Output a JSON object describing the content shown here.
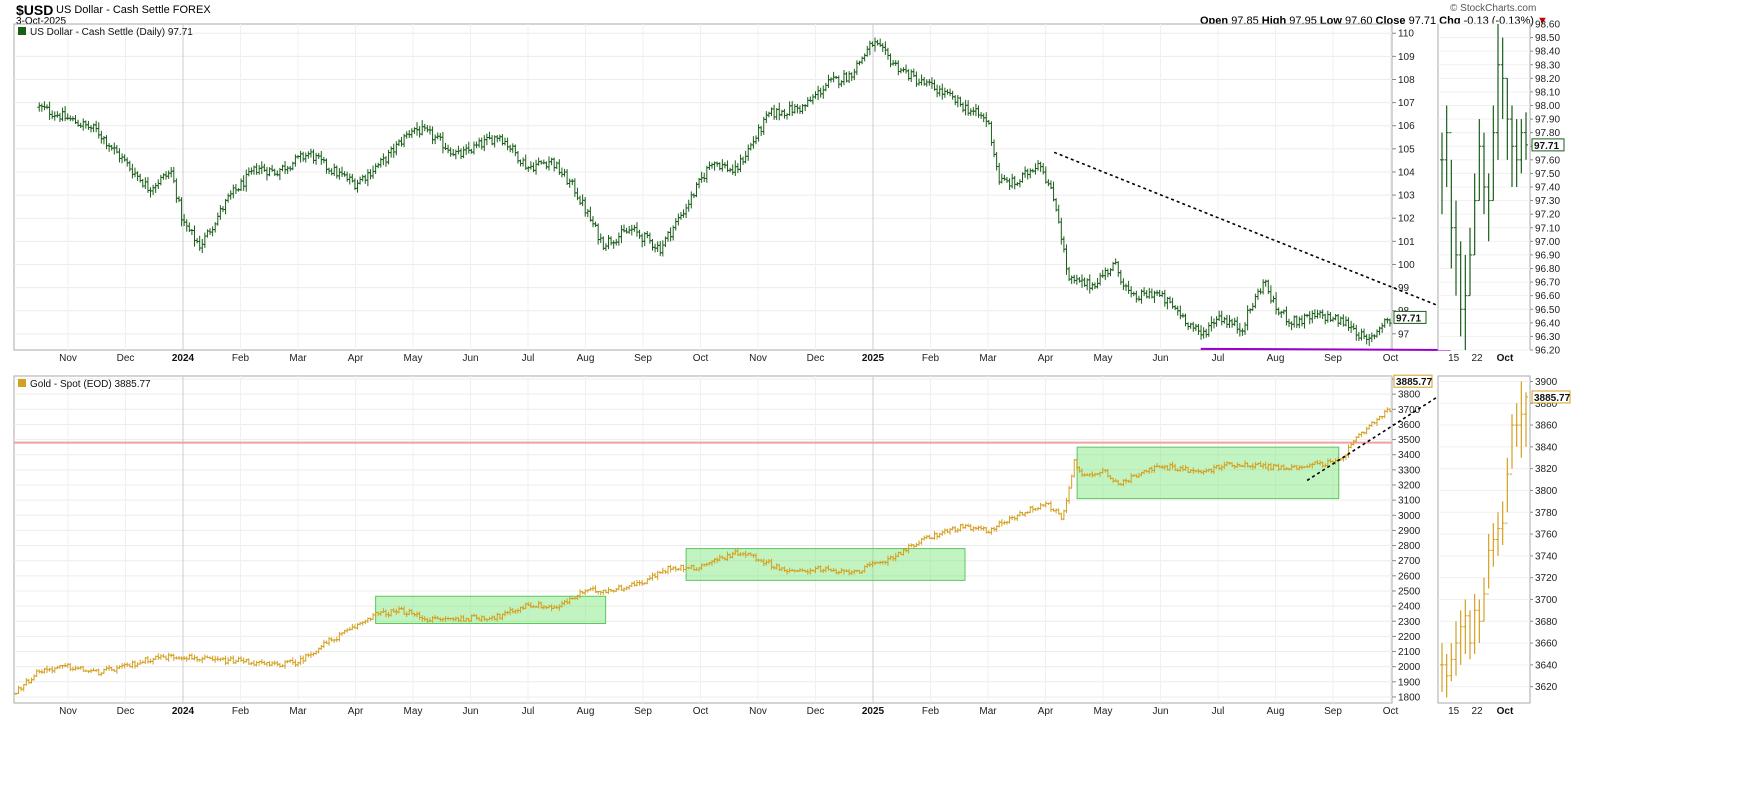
{
  "header": {
    "symbol": "$USD",
    "name": "US Dollar - Cash Settle FOREX",
    "date": "3-Oct-2025",
    "watermark": "© StockCharts.com",
    "open_label": "Open",
    "open": "97.85",
    "high_label": "High",
    "high": "97.95",
    "low_label": "Low",
    "low": "97.60",
    "close_label": "Close",
    "close": "97.71",
    "chg_label": "Chg",
    "chg": "-0.13 (-0.13%)",
    "chg_direction_color": "#cc0000"
  },
  "chart_data": [
    {
      "type": "bar",
      "panel": "top-main",
      "label": "US Dollar - Cash Settle (Daily) 97.71",
      "series_color": "#1a5e1a",
      "last_value_label": "97.71",
      "ylim": [
        96.3,
        110.4
      ],
      "yticks": [
        97,
        98,
        99,
        100,
        101,
        102,
        103,
        104,
        105,
        106,
        107,
        108,
        109,
        110
      ],
      "ytick_labels": [
        "97",
        "98",
        "99",
        "100",
        "101",
        "102",
        "103",
        "104",
        "105",
        "106",
        "107",
        "108",
        "109",
        "110"
      ],
      "x_tick_labels": [
        "Nov",
        "Dec",
        "2024",
        "Feb",
        "Mar",
        "Apr",
        "May",
        "Jun",
        "Jul",
        "Aug",
        "Sep",
        "Oct",
        "Nov",
        "Dec",
        "2025",
        "Feb",
        "Mar",
        "Apr",
        "May",
        "Jun",
        "Jul",
        "Aug",
        "Sep",
        "Oct"
      ],
      "x_tick_bold": [
        "2024",
        "2025"
      ],
      "x_tick_index": [
        0,
        1,
        2,
        3,
        4,
        5,
        6,
        7,
        8,
        9,
        10,
        11,
        12,
        13,
        14,
        15,
        16,
        17,
        18,
        19,
        20,
        21,
        22,
        23
      ],
      "anchors_months": [
        -0.5,
        0,
        0.5,
        1,
        1.4,
        1.8,
        2,
        2.3,
        2.8,
        3.3,
        3.6,
        4.2,
        4.5,
        5.0,
        5.5,
        6.0,
        6.3,
        6.8,
        7.5,
        8.0,
        8.4,
        8.8,
        9.3,
        9.8,
        10.3,
        10.8,
        11.2,
        11.6,
        12.2,
        12.8,
        13.2,
        13.6,
        14.0,
        14.4,
        14.8,
        15.1,
        15.6,
        16.0,
        16.2,
        16.5,
        16.9,
        17.2,
        17.4,
        17.8,
        18.2,
        18.5,
        18.9,
        19.3,
        19.7,
        20.0,
        20.4,
        20.8,
        21.0,
        21.3,
        21.8,
        22.3,
        22.6,
        22.9,
        23.1,
        23.4
      ],
      "anchors_values": [
        106.8,
        106.3,
        105.8,
        104.4,
        103.3,
        104.0,
        101.8,
        100.8,
        102.9,
        104.2,
        104.0,
        104.8,
        104.2,
        103.5,
        104.5,
        105.9,
        105.6,
        104.7,
        105.6,
        104.2,
        104.5,
        103.3,
        100.9,
        101.5,
        100.7,
        102.7,
        104.5,
        104.0,
        106.5,
        106.8,
        107.8,
        108.2,
        109.6,
        108.6,
        107.9,
        107.6,
        106.8,
        106.2,
        103.6,
        103.5,
        104.5,
        102.4,
        99.3,
        99.1,
        100.0,
        98.5,
        98.8,
        98.0,
        96.9,
        97.8,
        97.2,
        99.3,
        98.1,
        97.5,
        97.8,
        97.4,
        96.6,
        97.6,
        97.4,
        97.7
      ],
      "trendline": {
        "from": [
          17.15,
          104.85
        ],
        "to": [
          24.05,
          98.0
        ],
        "style": "dotted",
        "color": "#000000"
      },
      "support_line": {
        "from": [
          19.7,
          96.35
        ],
        "to": [
          24.05,
          96.3
        ],
        "color": "#9900cc"
      }
    },
    {
      "type": "bar",
      "panel": "top-right-inset",
      "series_color": "#1a5e1a",
      "last_value_label": "97.71",
      "ylim": [
        96.2,
        98.6
      ],
      "yticks": [
        96.2,
        96.3,
        96.4,
        96.5,
        96.6,
        96.7,
        96.8,
        96.9,
        97.0,
        97.1,
        97.2,
        97.3,
        97.4,
        97.5,
        97.6,
        97.7,
        97.8,
        97.9,
        98.0,
        98.1,
        98.2,
        98.3,
        98.4,
        98.5,
        98.6
      ],
      "ytick_labels": [
        "96.20",
        "96.30",
        "96.40",
        "96.50",
        "96.60",
        "96.70",
        "96.80",
        "96.90",
        "97.00",
        "97.10",
        "97.20",
        "97.30",
        "97.40",
        "97.50",
        "97.60",
        "97.70",
        "97.80",
        "97.90",
        "98.00",
        "98.10",
        "98.20",
        "98.30",
        "98.40",
        "98.50",
        "98.60"
      ],
      "x_tick_labels": [
        "15",
        "22",
        "Oct"
      ],
      "x_tick_bold": [
        "Oct"
      ],
      "bars": [
        {
          "h": 97.8,
          "l": 97.2,
          "c": 97.6
        },
        {
          "h": 98.0,
          "l": 97.4,
          "c": 97.8
        },
        {
          "h": 97.6,
          "l": 96.8,
          "c": 97.1
        },
        {
          "h": 97.3,
          "l": 96.6,
          "c": 96.9
        },
        {
          "h": 97.0,
          "l": 96.3,
          "c": 96.5
        },
        {
          "h": 96.9,
          "l": 96.2,
          "c": 96.6
        },
        {
          "h": 97.1,
          "l": 96.6,
          "c": 96.9
        },
        {
          "h": 97.5,
          "l": 96.9,
          "c": 97.3
        },
        {
          "h": 97.9,
          "l": 97.3,
          "c": 97.7
        },
        {
          "h": 97.8,
          "l": 97.2,
          "c": 97.4
        },
        {
          "h": 97.5,
          "l": 97.0,
          "c": 97.3
        },
        {
          "h": 98.0,
          "l": 97.3,
          "c": 97.8
        },
        {
          "h": 98.6,
          "l": 97.6,
          "c": 98.3
        },
        {
          "h": 98.5,
          "l": 97.9,
          "c": 98.2
        },
        {
          "h": 98.2,
          "l": 97.6,
          "c": 97.9
        },
        {
          "h": 98.0,
          "l": 97.4,
          "c": 97.7
        },
        {
          "h": 97.9,
          "l": 97.4,
          "c": 97.6
        },
        {
          "h": 97.9,
          "l": 97.5,
          "c": 97.8
        },
        {
          "h": 97.95,
          "l": 97.6,
          "c": 97.71
        }
      ]
    },
    {
      "type": "bar",
      "panel": "bottom-main",
      "label": "Gold - Spot (EOD) 3885.77",
      "series_color": "#d4a020",
      "last_value_label": "3885.77",
      "ylim": [
        1760,
        3920
      ],
      "yticks": [
        1800,
        1900,
        2000,
        2100,
        2200,
        2300,
        2400,
        2500,
        2600,
        2700,
        2800,
        2900,
        3000,
        3100,
        3200,
        3300,
        3400,
        3500,
        3600,
        3700,
        3800,
        3900
      ],
      "ytick_labels": [
        "1800",
        "1900",
        "2000",
        "2100",
        "2200",
        "2300",
        "2400",
        "2500",
        "2600",
        "2700",
        "2800",
        "2900",
        "3000",
        "3100",
        "3200",
        "3300",
        "3400",
        "3500",
        "3600",
        "3700",
        "3800",
        "3900"
      ],
      "x_tick_labels": [
        "Nov",
        "Dec",
        "2024",
        "Feb",
        "Mar",
        "Apr",
        "May",
        "Jun",
        "Jul",
        "Aug",
        "Sep",
        "Oct",
        "Nov",
        "Dec",
        "2025",
        "Feb",
        "Mar",
        "Apr",
        "May",
        "Jun",
        "Jul",
        "Aug",
        "Sep",
        "Oct"
      ],
      "x_tick_bold": [
        "2024",
        "2025"
      ],
      "anchors_months": [
        -0.95,
        -0.5,
        0,
        0.5,
        1.0,
        1.5,
        2.0,
        2.5,
        3.0,
        3.5,
        4.0,
        4.5,
        4.9,
        5.3,
        5.8,
        6.3,
        7.0,
        7.5,
        8.0,
        8.5,
        9.0,
        9.5,
        10.0,
        10.5,
        10.9,
        11.3,
        11.7,
        12.2,
        12.6,
        13.0,
        13.4,
        13.8,
        14.2,
        14.6,
        15.0,
        15.5,
        16.0,
        16.5,
        17.0,
        17.3,
        17.5,
        17.7,
        18.0,
        18.3,
        18.7,
        19.2,
        19.7,
        20.2,
        20.7,
        21.2,
        21.7,
        22.1,
        22.4,
        22.8,
        23.2,
        23.5
      ],
      "anchors_values": [
        1820,
        1975,
        2000,
        1960,
        2000,
        2060,
        2070,
        2040,
        2040,
        2010,
        2030,
        2160,
        2240,
        2340,
        2370,
        2310,
        2320,
        2330,
        2410,
        2390,
        2500,
        2510,
        2560,
        2660,
        2650,
        2710,
        2760,
        2680,
        2620,
        2650,
        2620,
        2640,
        2700,
        2780,
        2860,
        2920,
        2900,
        3000,
        3080,
        2980,
        3350,
        3250,
        3300,
        3200,
        3300,
        3320,
        3280,
        3340,
        3330,
        3310,
        3340,
        3350,
        3500,
        3640,
        3760,
        3885
      ],
      "resistance_line": {
        "value": 3480,
        "color": "#f0a0a0"
      },
      "consolidation_boxes": [
        {
          "x0": 5.35,
          "x1": 9.35,
          "y0": 2285,
          "y1": 2465
        },
        {
          "x0": 10.75,
          "x1": 15.6,
          "y0": 2570,
          "y1": 2780
        },
        {
          "x0": 17.55,
          "x1": 22.1,
          "y0": 3110,
          "y1": 3450
        }
      ],
      "trendline": {
        "from": [
          21.55,
          3230
        ],
        "to": [
          23.85,
          3790
        ],
        "style": "dotted",
        "color": "#000000"
      }
    },
    {
      "type": "bar",
      "panel": "bottom-right-inset",
      "series_color": "#d4a020",
      "last_value_label": "3885.77",
      "ylim": [
        3605,
        3905
      ],
      "yticks": [
        3620,
        3640,
        3660,
        3680,
        3700,
        3720,
        3740,
        3760,
        3780,
        3800,
        3820,
        3840,
        3860,
        3880,
        3900
      ],
      "ytick_labels": [
        "3620",
        "3640",
        "3660",
        "3680",
        "3700",
        "3720",
        "3740",
        "3760",
        "3780",
        "3800",
        "3820",
        "3840",
        "3860",
        "3880",
        "3900"
      ],
      "x_tick_labels": [
        "15",
        "22",
        "Oct"
      ],
      "x_tick_bold": [
        "Oct"
      ],
      "bars": [
        {
          "h": 3660,
          "l": 3615,
          "c": 3640
        },
        {
          "h": 3650,
          "l": 3610,
          "c": 3630
        },
        {
          "h": 3660,
          "l": 3625,
          "c": 3645
        },
        {
          "h": 3680,
          "l": 3630,
          "c": 3660
        },
        {
          "h": 3690,
          "l": 3640,
          "c": 3675
        },
        {
          "h": 3700,
          "l": 3650,
          "c": 3685
        },
        {
          "h": 3690,
          "l": 3645,
          "c": 3660
        },
        {
          "h": 3705,
          "l": 3650,
          "c": 3690
        },
        {
          "h": 3700,
          "l": 3660,
          "c": 3680
        },
        {
          "h": 3720,
          "l": 3680,
          "c": 3705
        },
        {
          "h": 3760,
          "l": 3710,
          "c": 3745
        },
        {
          "h": 3770,
          "l": 3730,
          "c": 3755
        },
        {
          "h": 3780,
          "l": 3740,
          "c": 3765
        },
        {
          "h": 3790,
          "l": 3750,
          "c": 3770
        },
        {
          "h": 3830,
          "l": 3780,
          "c": 3815
        },
        {
          "h": 3870,
          "l": 3820,
          "c": 3860
        },
        {
          "h": 3880,
          "l": 3840,
          "c": 3860
        },
        {
          "h": 3900,
          "l": 3830,
          "c": 3870
        },
        {
          "h": 3890,
          "l": 3840,
          "c": 3885.77
        }
      ]
    }
  ]
}
